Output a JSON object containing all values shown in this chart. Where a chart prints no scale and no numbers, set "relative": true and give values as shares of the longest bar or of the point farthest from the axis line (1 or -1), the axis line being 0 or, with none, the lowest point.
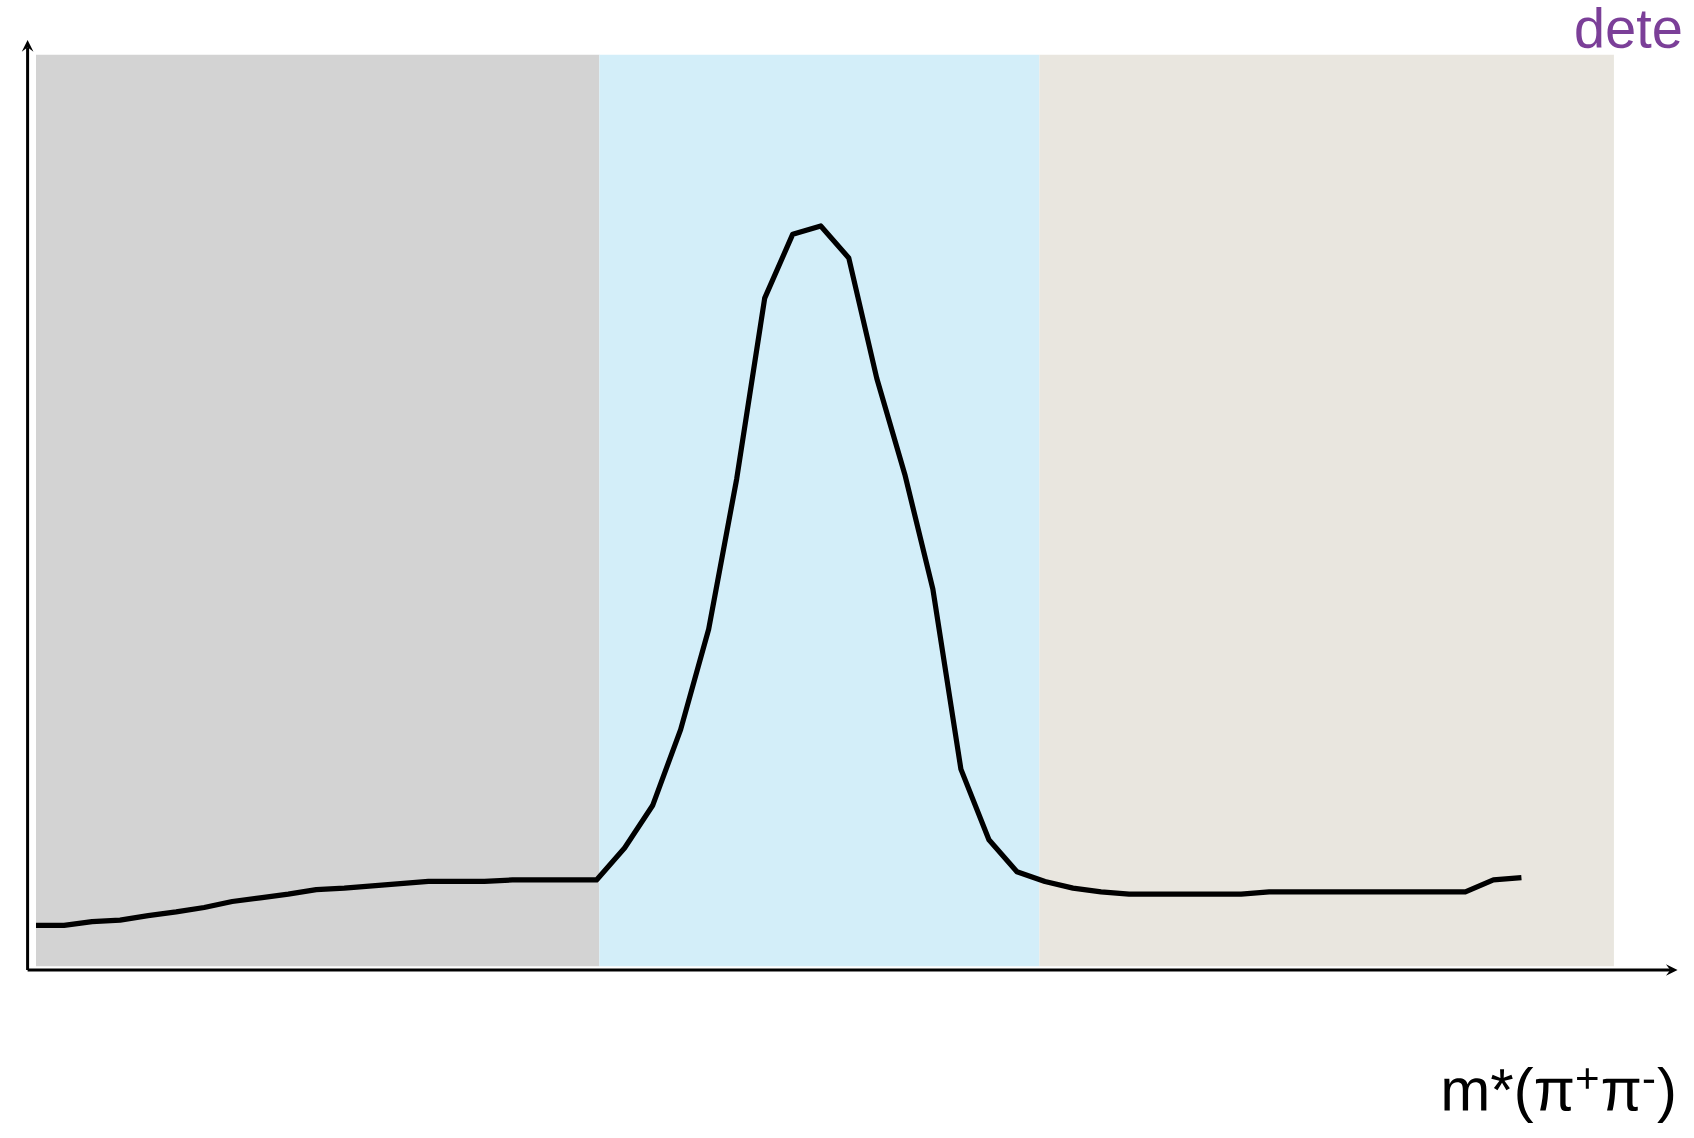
{
  "chart_data": {
    "type": "line",
    "relative": true,
    "xlabel": "m*(π$^{+}$π$^{-}$)",
    "annotations": [
      "dete"
    ],
    "categories": [
      null,
      null,
      null,
      null,
      null,
      null,
      null,
      null,
      null,
      null,
      null,
      null,
      null,
      null,
      null,
      null,
      null,
      null,
      null,
      null,
      null,
      null,
      null,
      null,
      null,
      null,
      null,
      null,
      null,
      null,
      null,
      null,
      null,
      null,
      null,
      null,
      null,
      null,
      null,
      null,
      null,
      null,
      null,
      null,
      null,
      null,
      null,
      null,
      null,
      null,
      null,
      null,
      null,
      null
    ],
    "series": [
      {
        "color": "#000000",
        "values": [
          0.06,
          0.06,
          0.065,
          0.067,
          0.073,
          0.078,
          0.084,
          0.092,
          0.097,
          0.102,
          0.108,
          0.11,
          0.113,
          0.116,
          0.119,
          0.119,
          0.119,
          0.121,
          0.121,
          0.121,
          0.121,
          0.164,
          0.221,
          0.323,
          0.458,
          0.66,
          0.903,
          0.989,
          1,
          0.957,
          0.795,
          0.666,
          0.512,
          0.27,
          0.175,
          0.132,
          0.119,
          0.11,
          0.105,
          0.102,
          0.102,
          0.102,
          0.102,
          0.102,
          0.105,
          0.105,
          0.105,
          0.105,
          0.105,
          0.105,
          0.105,
          0.105,
          0.121,
          0.124
        ]
      }
    ]
  }
}
